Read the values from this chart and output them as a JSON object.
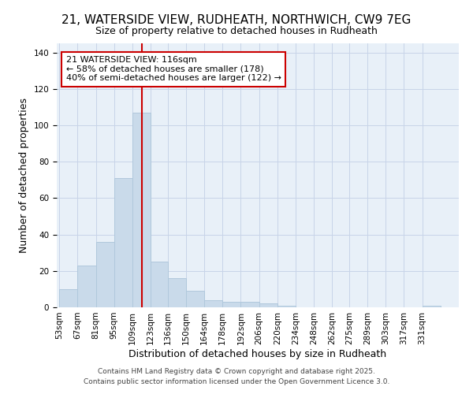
{
  "title1": "21, WATERSIDE VIEW, RUDHEATH, NORTHWICH, CW9 7EG",
  "title2": "Size of property relative to detached houses in Rudheath",
  "xlabel": "Distribution of detached houses by size in Rudheath",
  "ylabel": "Number of detached properties",
  "bin_labels": [
    "53sqm",
    "67sqm",
    "81sqm",
    "95sqm",
    "109sqm",
    "123sqm",
    "136sqm",
    "150sqm",
    "164sqm",
    "178sqm",
    "192sqm",
    "206sqm",
    "220sqm",
    "234sqm",
    "248sqm",
    "262sqm",
    "275sqm",
    "289sqm",
    "303sqm",
    "317sqm",
    "331sqm"
  ],
  "bar_values": [
    10,
    23,
    36,
    71,
    107,
    25,
    16,
    9,
    4,
    3,
    3,
    2,
    1,
    0,
    0,
    0,
    0,
    0,
    0,
    0,
    1
  ],
  "bin_edges": [
    53,
    67,
    81,
    95,
    109,
    123,
    136,
    150,
    164,
    178,
    192,
    206,
    220,
    234,
    248,
    262,
    275,
    289,
    303,
    317,
    331,
    345
  ],
  "bar_color": "#c9daea",
  "bar_edgecolor": "#b0c8dc",
  "vline_x": 116,
  "vline_color": "#cc0000",
  "annotation_line1": "21 WATERSIDE VIEW: 116sqm",
  "annotation_line2": "← 58% of detached houses are smaller (178)",
  "annotation_line3": "40% of semi-detached houses are larger (122) →",
  "annotation_box_edgecolor": "#cc0000",
  "annotation_box_facecolor": "#ffffff",
  "footer1": "Contains HM Land Registry data © Crown copyright and database right 2025.",
  "footer2": "Contains public sector information licensed under the Open Government Licence 3.0.",
  "fig_background": "#ffffff",
  "plot_background": "#e8f0f8",
  "grid_color": "#c8d4e8",
  "title1_fontsize": 11,
  "title2_fontsize": 9,
  "axis_label_fontsize": 9,
  "tick_fontsize": 7.5,
  "annotation_fontsize": 8,
  "footer_fontsize": 6.5,
  "ylim": [
    0,
    145
  ],
  "yticks": [
    0,
    20,
    40,
    60,
    80,
    100,
    120,
    140
  ]
}
